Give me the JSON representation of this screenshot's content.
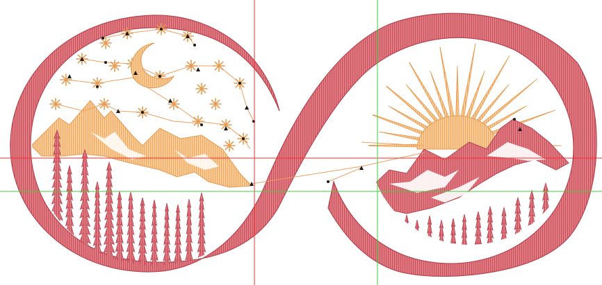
{
  "canvas": {
    "background": "#ffffff"
  },
  "colors": {
    "stitch_red": "#d9606a",
    "stitch_red_dark": "#b84450",
    "stitch_orange": "#f6bf83",
    "stitch_orange_dark": "#e89a50",
    "guide_red": "#ff2a2a",
    "guide_green": "#3bd23b",
    "travel_line": "#f0a060",
    "node_black": "#1a1a1a"
  },
  "icons": {
    "design": "infinity-embroidery-design",
    "moon": "crescent-moon-icon",
    "sun": "sun-rays-icon",
    "star": "star-icon",
    "mountain": "mountain-icon",
    "tree": "pine-tree-icon"
  }
}
